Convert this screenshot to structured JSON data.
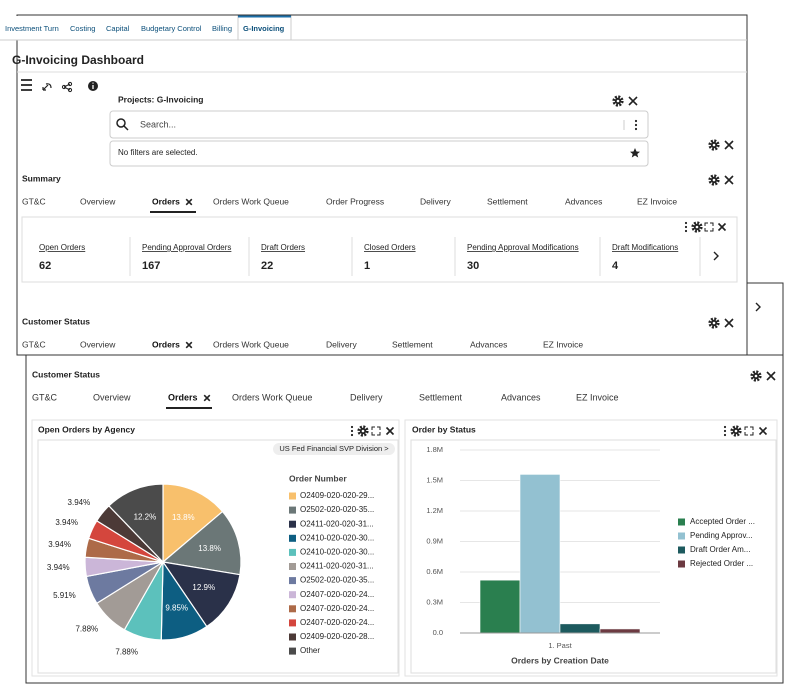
{
  "app_tabs": [
    "Investment Turn",
    "Costing",
    "Capital",
    "Budgetary Control",
    "Billing",
    "G-Invoicing"
  ],
  "page_title": "G-Invoicing Dashboard",
  "projects_panel": {
    "title": "Projects: G-Invoicing",
    "search_placeholder": "Search...",
    "filter_message": "No filters are selected."
  },
  "summary": {
    "title": "Summary",
    "tabs": [
      "GT&C",
      "Overview",
      "Orders",
      "Orders Work Queue",
      "Order Progress",
      "Delivery",
      "Settlement",
      "Advances",
      "EZ Invoice"
    ],
    "metrics": [
      {
        "label": "Open Orders",
        "value": 62
      },
      {
        "label": "Pending Approval Orders",
        "value": 167
      },
      {
        "label": "Draft Orders",
        "value": 22
      },
      {
        "label": "Closed Orders",
        "value": 1
      },
      {
        "label": "Pending Approval Modifications",
        "value": 30
      },
      {
        "label": "Draft Modifications",
        "value": 4
      }
    ]
  },
  "customer_status_back": {
    "title": "Customer Status",
    "tabs": [
      "GT&C",
      "Overview",
      "Orders",
      "Orders Work Queue",
      "Delivery",
      "Settlement",
      "Advances",
      "EZ Invoice"
    ]
  },
  "customer_status": {
    "title": "Customer Status",
    "tabs": [
      "GT&C",
      "Overview",
      "Orders",
      "Orders Work Queue",
      "Delivery",
      "Settlement",
      "Advances",
      "EZ Invoice"
    ],
    "pie_chart": {
      "type": "pie",
      "title": "Open Orders by Agency",
      "drill_button": "US Fed Financial SVP Division >",
      "legend_title": "Order Number",
      "categories": [
        "O2409-020-020-29...",
        "O2502-020-020-35...",
        "O2411-020-020-31...",
        "O2410-020-020-30...",
        "O2410-020-020-30...",
        "O2411-020-020-31...",
        "O2502-020-020-35...",
        "O2407-020-020-24...",
        "O2407-020-020-24...",
        "O2407-020-020-24...",
        "O2409-020-020-28...",
        "Other"
      ],
      "values": [
        13.8,
        13.8,
        12.9,
        9.85,
        7.88,
        7.88,
        5.91,
        3.94,
        3.94,
        3.94,
        3.94,
        12.2
      ],
      "value_labels": [
        "13.8%",
        "13.8%",
        "12.9%",
        "9.85%",
        "7.88%",
        "7.88%",
        "5.91%",
        "3.94%",
        "3.94%",
        "3.94%",
        "3.94%",
        "12.2%"
      ],
      "colors": [
        "#f8c06c",
        "#6b7777",
        "#2a3149",
        "#0d5e82",
        "#5cc1bc",
        "#a29b96",
        "#6d7aa0",
        "#cbb6d8",
        "#ad6a48",
        "#d4463d",
        "#4c3a37",
        "#4b4b4b"
      ]
    },
    "bar_chart": {
      "type": "bar",
      "title": "Order by Status",
      "x_label": "Orders by Creation Date",
      "categories": [
        "1. Past"
      ],
      "ylim": [
        0,
        1800000
      ],
      "yticks": [
        {
          "value": 0,
          "label": "0.0"
        },
        {
          "value": 300000,
          "label": "0.3M"
        },
        {
          "value": 600000,
          "label": "0.6M"
        },
        {
          "value": 900000,
          "label": "0.9M"
        },
        {
          "value": 1200000,
          "label": "1.2M"
        },
        {
          "value": 1500000,
          "label": "1.5M"
        },
        {
          "value": 1800000,
          "label": "1.8M"
        }
      ],
      "grid": true,
      "series": [
        {
          "name": "Accepted Order ...",
          "color": "#2a7f4f",
          "values": [
            520000
          ]
        },
        {
          "name": "Pending Approv...",
          "color": "#93c1d1",
          "values": [
            1560000
          ]
        },
        {
          "name": "Draft Order Am...",
          "color": "#1d5a5e",
          "values": [
            90000
          ]
        },
        {
          "name": "Rejected Order ...",
          "color": "#6c3a41",
          "values": [
            40000
          ]
        }
      ]
    }
  }
}
